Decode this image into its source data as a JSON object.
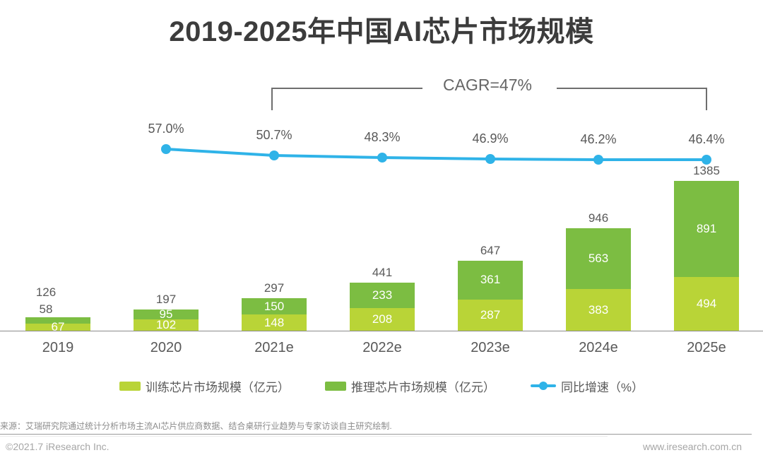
{
  "chart_data": {
    "type": "bar",
    "subtype": "stacked-bar-with-line-overlay",
    "title": "2019-2025年中国AI芯片市场规模",
    "categories": [
      "2019",
      "2020",
      "2021e",
      "2022e",
      "2023e",
      "2024e",
      "2025e"
    ],
    "series": [
      {
        "name": "训练芯片市场规模（亿元）",
        "type": "bar",
        "color": "#b9d437",
        "values": [
          67,
          102,
          148,
          208,
          287,
          383,
          494
        ]
      },
      {
        "name": "推理芯片市场规模（亿元）",
        "type": "bar",
        "color": "#7cbd42",
        "values": [
          58,
          95,
          150,
          233,
          361,
          563,
          891
        ]
      },
      {
        "name": "同比增速（%）",
        "type": "line",
        "color": "#2fb3e8",
        "x": [
          "2020",
          "2021e",
          "2022e",
          "2023e",
          "2024e",
          "2025e"
        ],
        "values": [
          57.0,
          50.7,
          48.3,
          46.9,
          46.2,
          46.4
        ],
        "labels": [
          "57.0%",
          "50.7%",
          "48.3%",
          "46.9%",
          "46.2%",
          "46.4%"
        ]
      }
    ],
    "totals": [
      126,
      197,
      297,
      441,
      647,
      946,
      1385
    ],
    "annotation": {
      "label": "CAGR=47%",
      "span": [
        "2021e",
        "2025e"
      ]
    },
    "ylim": [
      0,
      1385
    ],
    "grid": false,
    "legend_position": "bottom",
    "label_color": "#595959",
    "bar_value_label_color": "#ffffff"
  },
  "footer": {
    "source": "来源：艾瑞研究院通过统计分析市场主流AI芯片供应商数据、结合桌研行业趋势与专家访谈自主研究绘制.",
    "copyright": "©2021.7 iResearch Inc.",
    "website": "www.iresearch.com.cn"
  }
}
